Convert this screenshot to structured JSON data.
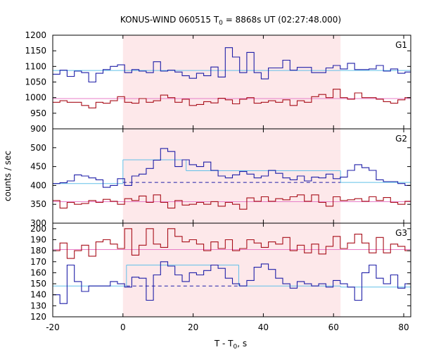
{
  "chart_data": {
    "type": "line",
    "title": "KONUS-WIND 060515 T",
    "title_sub": "0",
    "title_rest": " = 8868s UT (02:27:48.000)",
    "xlabel": "T - T",
    "xlabel_sub": "0",
    "xlabel_rest": ", s",
    "ylabel": "counts / sec",
    "xlim": [
      -20,
      82
    ],
    "xticks": [
      "-20",
      "0",
      "20",
      "40",
      "60",
      "80"
    ],
    "xtick_values": [
      -20,
      0,
      20,
      40,
      60,
      80
    ],
    "grid": false,
    "shaded_interval": {
      "x0": 0,
      "x1": 62,
      "color": "#fde8ea"
    },
    "colors": {
      "blue": "#1f1fa8",
      "red": "#a80f1a",
      "lightblue": "#62c0e8",
      "pink": "#e87ec8"
    },
    "bin_width": 2.048,
    "panels": [
      {
        "label": "G1",
        "ylim": [
          900,
          1200
        ],
        "yticks": [
          "900",
          "950",
          "1000",
          "1050",
          "1100",
          "1150",
          "1200"
        ],
        "ytick_values": [
          900,
          950,
          1000,
          1050,
          1100,
          1150,
          1200
        ],
        "series": [
          {
            "color": "#1f1fa8",
            "values": [
              1075,
              1088,
              1068,
              1085,
              1080,
              1050,
              1078,
              1090,
              1100,
              1105,
              1080,
              1090,
              1085,
              1080,
              1115,
              1085,
              1088,
              1082,
              1070,
              1062,
              1078,
              1070,
              1098,
              1066,
              1160,
              1130,
              1080,
              1145,
              1080,
              1060,
              1095,
              1095,
              1120,
              1088,
              1097,
              1097,
              1080,
              1080,
              1095,
              1103,
              1092,
              1110,
              1090,
              1090,
              1092,
              1103,
              1085,
              1092,
              1078,
              1082,
              1060,
              1075,
              1100,
              1075,
              1090,
              1102,
              1058,
              1112,
              1085,
              1085,
              1080
            ]
          },
          {
            "color": "#a80f1a",
            "values": [
              985,
              990,
              985,
              985,
              975,
              967,
              985,
              982,
              990,
              1003,
              985,
              982,
              997,
              985,
              990,
              1008,
              1000,
              985,
              995,
              975,
              978,
              987,
              983,
              998,
              993,
              980,
              995,
              1000,
              982,
              985,
              990,
              985,
              993,
              975,
              990,
              985,
              1003,
              1010,
              1000,
              1027,
              1000,
              995,
              1015,
              1000,
              1000,
              995,
              987,
              982,
              993,
              1000,
              1000,
              1003,
              985,
              992,
              968,
              1010,
              1000,
              1010,
              985,
              970,
              995
            ]
          }
        ],
        "fits": [
          {
            "color": "#62c0e8",
            "segments": [
              [
                -20,
                84,
                1087
              ]
            ]
          },
          {
            "color": "#e87ec8",
            "segments": [
              [
                -20,
                84,
                997
              ]
            ]
          }
        ]
      },
      {
        "label": "G2",
        "ylim": [
          300,
          550
        ],
        "yticks": [
          "300",
          "350",
          "400",
          "450",
          "500"
        ],
        "ytick_values": [
          300,
          350,
          400,
          450,
          500
        ],
        "series": [
          {
            "color": "#1f1fa8",
            "values": [
              405,
              407,
              412,
              428,
              425,
              420,
              415,
              395,
              400,
              418,
              400,
              425,
              430,
              445,
              467,
              498,
              490,
              450,
              468,
              455,
              450,
              462,
              440,
              425,
              420,
              428,
              437,
              430,
              420,
              425,
              440,
              432,
              420,
              415,
              425,
              412,
              422,
              420,
              430,
              418,
              422,
              440,
              455,
              447,
              440,
              415,
              410,
              410,
              405,
              400,
              418,
              420,
              402,
              405,
              410,
              412,
              403,
              415,
              400,
              412,
              405
            ]
          },
          {
            "color": "#a80f1a",
            "values": [
              360,
              340,
              355,
              350,
              352,
              360,
              355,
              363,
              358,
              350,
              365,
              360,
              372,
              355,
              375,
              355,
              340,
              360,
              348,
              350,
              355,
              350,
              357,
              345,
              355,
              350,
              337,
              367,
              358,
              370,
              358,
              365,
              362,
              370,
              375,
              358,
              375,
              355,
              345,
              370,
              360,
              362,
              365,
              358,
              370,
              360,
              368,
              355,
              350,
              358,
              355,
              340,
              358,
              345,
              362,
              362,
              330,
              365,
              348,
              360,
              362
            ]
          }
        ],
        "fits": [
          {
            "color": "#62c0e8",
            "segments": [
              [
                -20,
                0,
                405
              ],
              [
                0,
                18,
                468
              ],
              [
                18,
                62,
                439
              ],
              [
                62,
                84,
                408
              ]
            ]
          },
          {
            "color": "#1f1fa8",
            "dashed": true,
            "segments": [
              [
                0,
                62,
                408
              ]
            ]
          },
          {
            "color": "#e87ec8",
            "segments": [
              [
                -20,
                84,
                357
              ]
            ]
          }
        ]
      },
      {
        "label": "G3",
        "ylim": [
          120,
          205
        ],
        "yticks": [
          "120",
          "130",
          "140",
          "150",
          "160",
          "170",
          "180",
          "190",
          "200"
        ],
        "ytick_values": [
          120,
          130,
          140,
          150,
          160,
          170,
          180,
          190,
          200
        ],
        "series": [
          {
            "color": "#1f1fa8",
            "values": [
              140,
              132,
              167,
              152,
              143,
              148,
              148,
              148,
              152,
              150,
              147,
              156,
              155,
              135,
              158,
              170,
              166,
              158,
              152,
              160,
              158,
              162,
              167,
              164,
              155,
              150,
              148,
              153,
              165,
              168,
              163,
              155,
              150,
              146,
              152,
              150,
              148,
              150,
              147,
              153,
              150,
              147,
              135,
              160,
              167,
              155,
              150,
              158,
              146,
              150,
              150,
              147,
              140,
              154,
              141,
              145,
              152,
              142,
              147,
              144,
              150
            ]
          },
          {
            "color": "#a80f1a",
            "values": [
              180,
              187,
              173,
              180,
              185,
              175,
              188,
              190,
              186,
              182,
              200,
              176,
              185,
              200,
              186,
              183,
              200,
              193,
              188,
              190,
              186,
              180,
              188,
              182,
              190,
              180,
              182,
              190,
              187,
              183,
              188,
              186,
              192,
              180,
              185,
              178,
              186,
              177,
              184,
              193,
              182,
              187,
              195,
              187,
              178,
              192,
              178,
              186,
              184,
              180,
              182,
              170,
              183,
              165,
              180,
              188,
              185,
              178,
              185,
              180,
              190
            ]
          }
        ],
        "fits": [
          {
            "color": "#62c0e8",
            "segments": [
              [
                -20,
                1,
                148
              ],
              [
                1,
                33,
                167
              ],
              [
                33,
                62,
                148
              ],
              [
                62,
                84,
                147
              ]
            ]
          },
          {
            "color": "#1f1fa8",
            "dashed": true,
            "segments": [
              [
                1,
                33,
                148
              ]
            ]
          },
          {
            "color": "#e87ec8",
            "segments": [
              [
                -20,
                84,
                181
              ]
            ]
          }
        ]
      }
    ]
  }
}
